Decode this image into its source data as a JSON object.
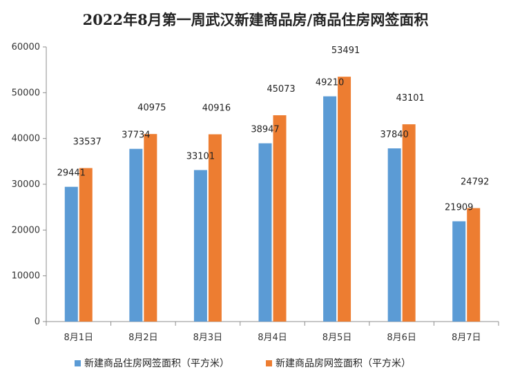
{
  "chart_data": {
    "type": "bar",
    "title": "2022年8月第一周武汉新建商品房/商品住房网签面积",
    "xlabel": "",
    "ylabel": "",
    "ylim": [
      0,
      60000
    ],
    "yticks": [
      0,
      10000,
      20000,
      30000,
      40000,
      50000,
      60000
    ],
    "grid": false,
    "legend": "bottom",
    "categories": [
      "8月1日",
      "8月2日",
      "8月3日",
      "8月4日",
      "8月5日",
      "8月6日",
      "8月7日"
    ],
    "series": [
      {
        "name": "新建商品住房网签面积（平方米）",
        "color": "#5b9bd5",
        "values": [
          29441,
          37734,
          33101,
          38947,
          49210,
          37840,
          21909
        ]
      },
      {
        "name": "新建商品房网签面积（平方米）",
        "color": "#ed7d31",
        "values": [
          33537,
          40975,
          40916,
          45073,
          53491,
          43101,
          24792
        ]
      }
    ]
  }
}
